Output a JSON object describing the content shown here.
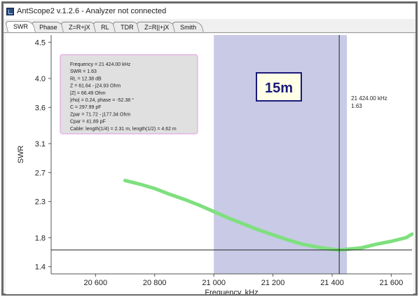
{
  "window": {
    "title": "AntScope2 v.1.2.6 - Analyzer not connected"
  },
  "tabs": [
    "SWR",
    "Phase",
    "Z=R+jX",
    "RL",
    "TDR",
    "Z=R||+jX",
    "Smith"
  ],
  "band_label": "15m",
  "info_box": [
    "Frequency = 21 424.00 kHz",
    "SWR = 1.63",
    "RL = 12.38 dB",
    "Z = 61.64 - j24.93 Ohm",
    "|Z| = 66.49 Ohm",
    "|rho| = 0.24, phase = -52.38 °",
    "C = 297.99 pF",
    "Zpar = 71.72 - j177.34 Ohm",
    "Cpar = 41.89 pF",
    "Cable: length(1/4) = 2.31 m, length(1/2) = 4.62 m"
  ],
  "cursor": {
    "freq_label": "21 424.00 kHz",
    "swr_label": "1.63",
    "freq": 21424,
    "swr": 1.63
  },
  "colors": {
    "band_fill": "#c8cae6",
    "curve": "#7ee07e",
    "band_label_border": "#1a1a7a",
    "band_label_text": "#1a1a7a"
  },
  "chart_data": {
    "type": "line",
    "xlabel": "Frequency, kHz",
    "ylabel": "SWR",
    "xlim": [
      20450,
      21670
    ],
    "ylim": [
      1.3,
      4.6
    ],
    "x_ticks": [
      20600,
      20800,
      21000,
      21200,
      21400,
      21600
    ],
    "x_tick_labels": [
      "20 600",
      "20 800",
      "21 000",
      "21 200",
      "21 400",
      "21 600"
    ],
    "y_ticks": [
      1.4,
      1.8,
      2.3,
      2.7,
      3.1,
      3.6,
      4.0,
      4.5
    ],
    "y_tick_labels": [
      "1.4",
      "1.8",
      "2.3",
      "2.7",
      "3.1",
      "3.6",
      "4.0",
      "4.5"
    ],
    "band": [
      21000,
      21450
    ],
    "series": [
      {
        "x": [
          20700,
          20750,
          20800,
          20850,
          20900,
          20950,
          21000,
          21050,
          21100,
          21150,
          21200,
          21250,
          21300,
          21350,
          21400,
          21424,
          21450,
          21500,
          21550,
          21600,
          21650,
          21670
        ],
        "values": [
          2.59,
          2.54,
          2.48,
          2.4,
          2.33,
          2.25,
          2.16,
          2.07,
          1.99,
          1.91,
          1.84,
          1.77,
          1.71,
          1.67,
          1.64,
          1.63,
          1.64,
          1.66,
          1.71,
          1.75,
          1.8,
          1.85
        ]
      }
    ]
  }
}
